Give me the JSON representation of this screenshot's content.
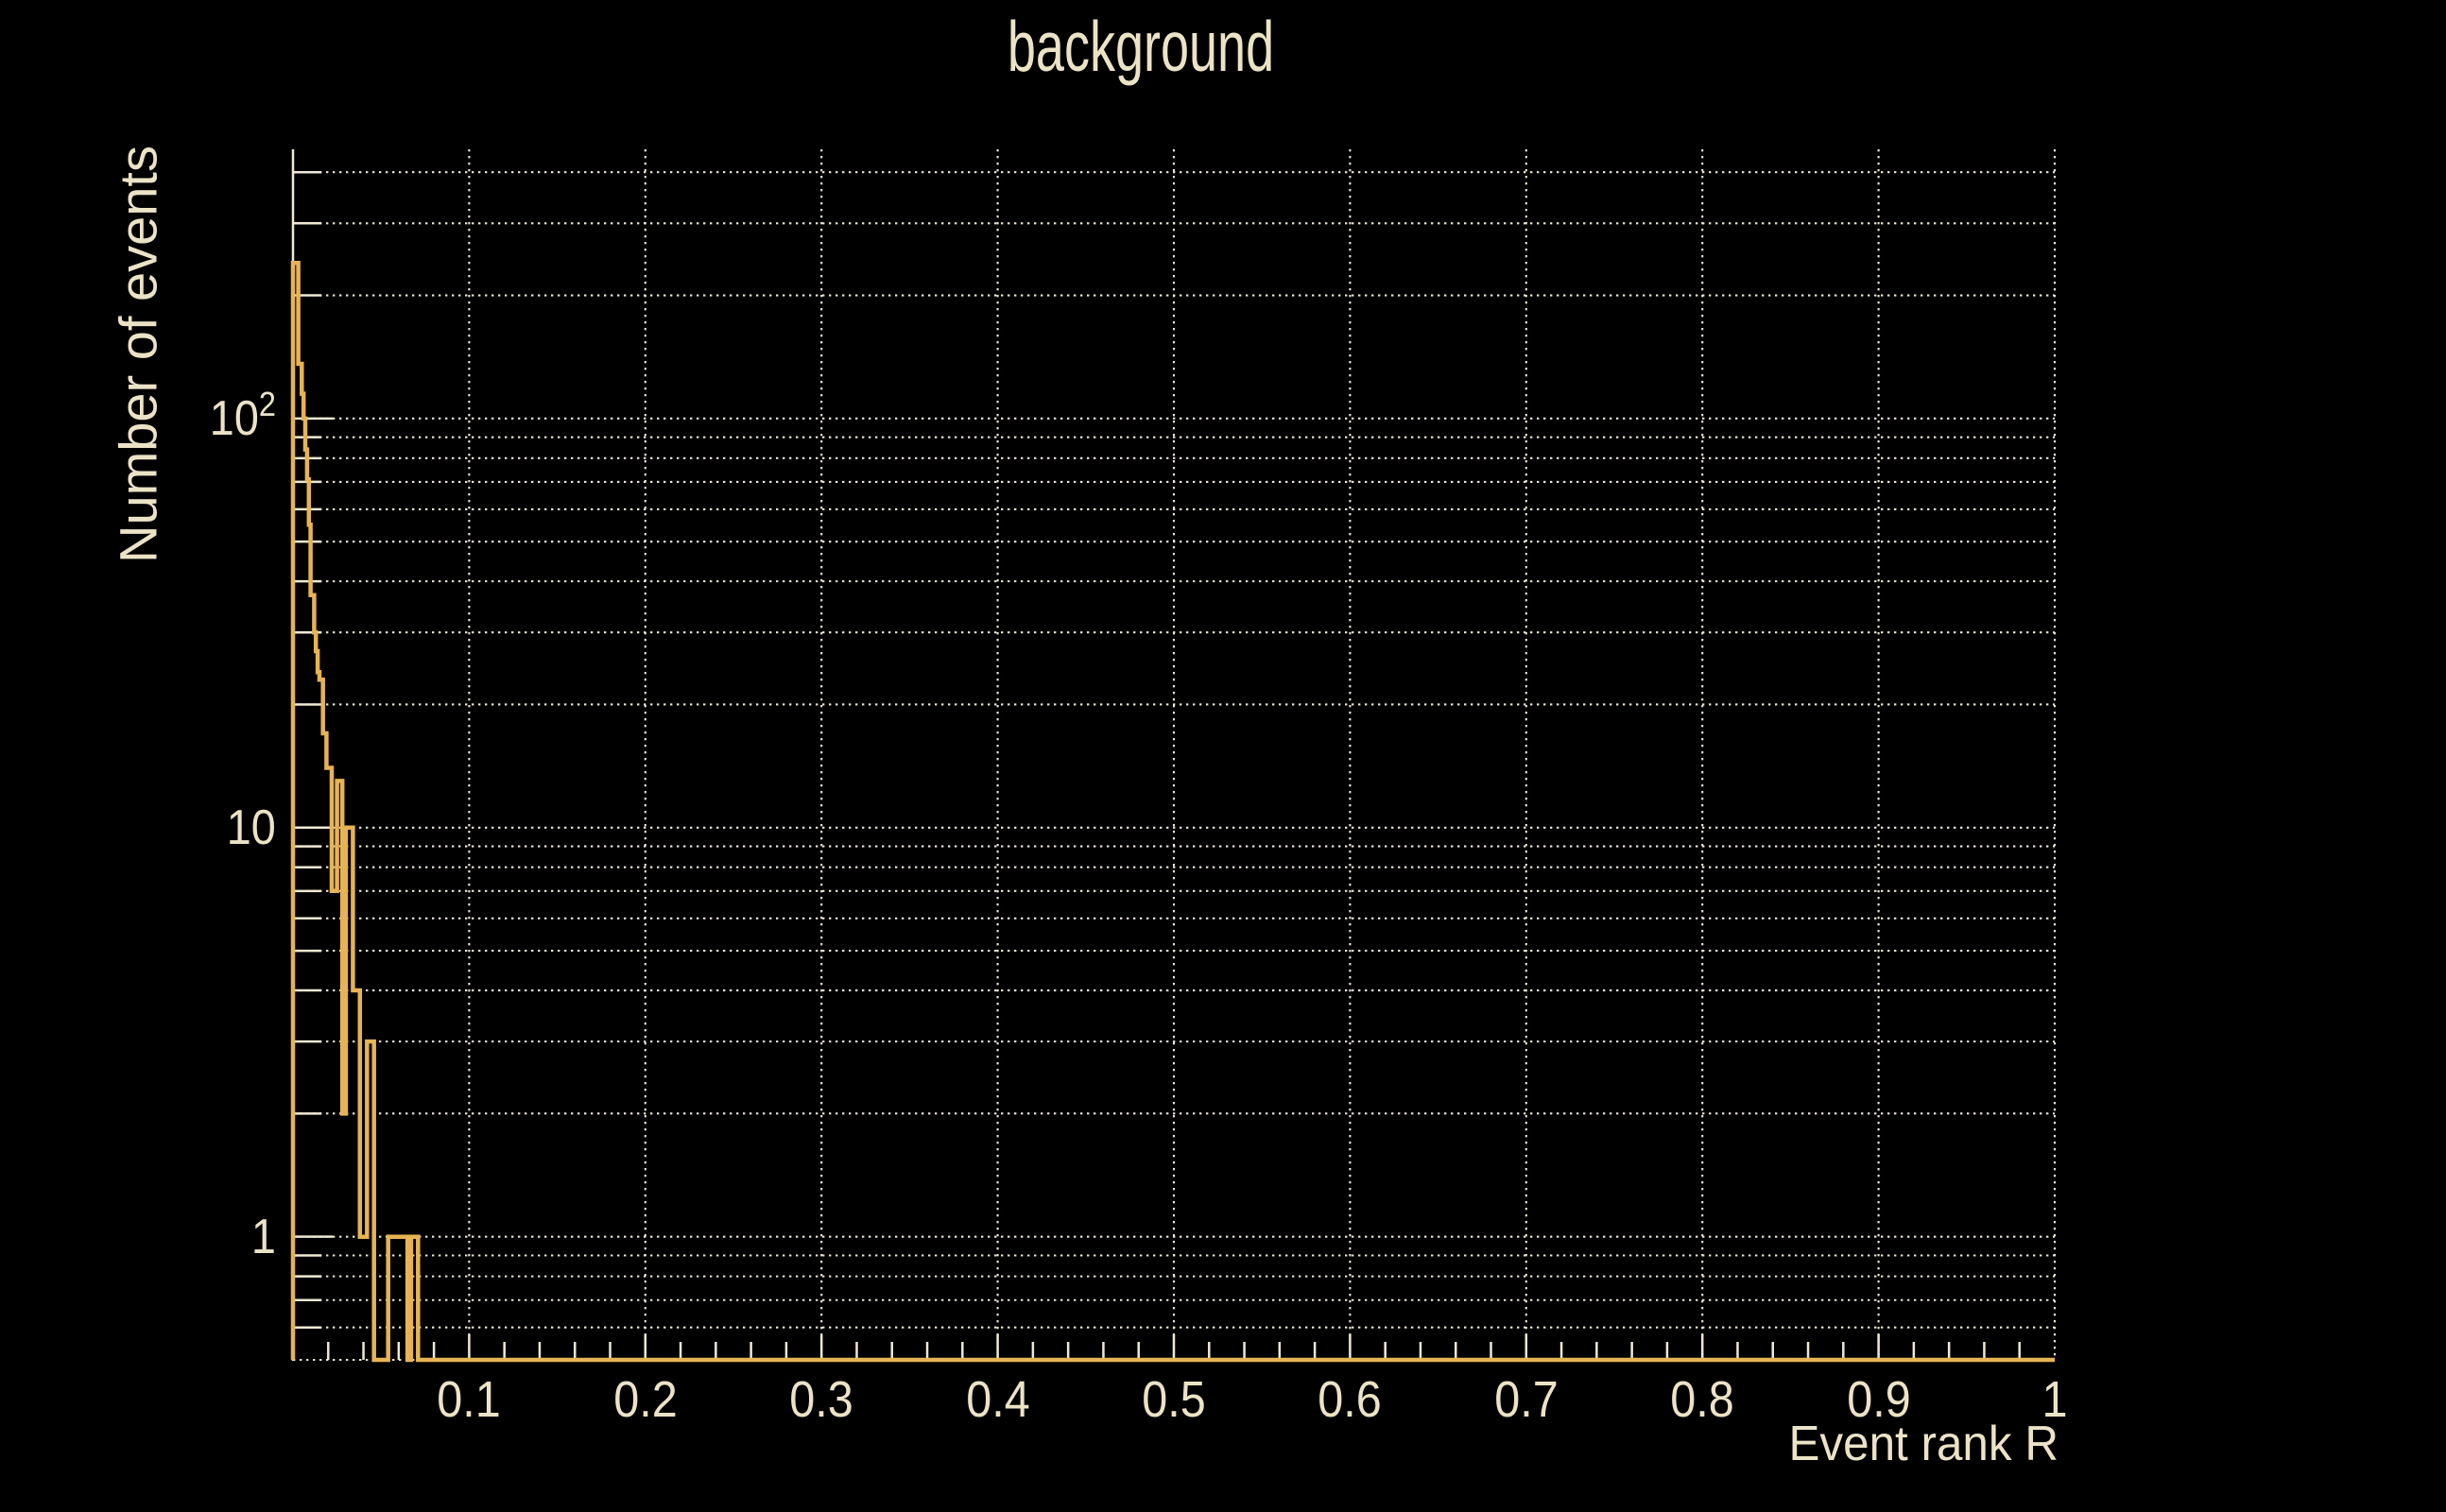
{
  "title": "background",
  "axes": {
    "x": {
      "title": "Event rank R",
      "min": 0,
      "max": 1,
      "major_ticks": [
        0.1,
        0.2,
        0.3,
        0.4,
        0.5,
        0.6,
        0.7,
        0.8,
        0.9,
        1
      ],
      "tick_labels": [
        "0.1",
        "0.2",
        "0.3",
        "0.4",
        "0.5",
        "0.6",
        "0.7",
        "0.8",
        "0.9",
        "1"
      ],
      "minor_tick_step": 0.02,
      "grid": true
    },
    "y": {
      "title": "Number of events",
      "scale": "log",
      "min": 0.5,
      "max": 455,
      "major_ticks": [
        1,
        10,
        100
      ],
      "tick_labels": [
        {
          "base": "1",
          "sup": ""
        },
        {
          "base": "10",
          "sup": ""
        },
        {
          "base": "10",
          "sup": "2"
        }
      ],
      "grid": true
    }
  },
  "chart_data": {
    "type": "histogram-step",
    "series_name": "background",
    "xlabel": "Event rank R",
    "ylabel": "Number of events",
    "xlim": [
      0,
      1
    ],
    "ylim": [
      0.5,
      455
    ],
    "ylog": true,
    "steps_note": "pairs of [bin_left_edge_x, bin_value]; value holds until next edge; 0 beyond x=0.071 up to x=1",
    "steps": [
      [
        0.0,
        240
      ],
      [
        0.003,
        136
      ],
      [
        0.005,
        115
      ],
      [
        0.006,
        100
      ],
      [
        0.007,
        84
      ],
      [
        0.008,
        71
      ],
      [
        0.009,
        55
      ],
      [
        0.01,
        37
      ],
      [
        0.012,
        30
      ],
      [
        0.013,
        27
      ],
      [
        0.014,
        24
      ],
      [
        0.015,
        23
      ],
      [
        0.017,
        17
      ],
      [
        0.019,
        14
      ],
      [
        0.022,
        7
      ],
      [
        0.025,
        13
      ],
      [
        0.028,
        2
      ],
      [
        0.03,
        10
      ],
      [
        0.034,
        4
      ],
      [
        0.038,
        1
      ],
      [
        0.042,
        3
      ],
      [
        0.046,
        0
      ],
      [
        0.054,
        1
      ],
      [
        0.065,
        0
      ],
      [
        0.067,
        1
      ],
      [
        0.071,
        0
      ],
      [
        1.0,
        0
      ]
    ]
  },
  "colors": {
    "background": "#000000",
    "histogram_line": "#e6b355",
    "text": "#ece3c6",
    "axis": "#efe8d3",
    "grid_dots": "#ece6d4"
  }
}
